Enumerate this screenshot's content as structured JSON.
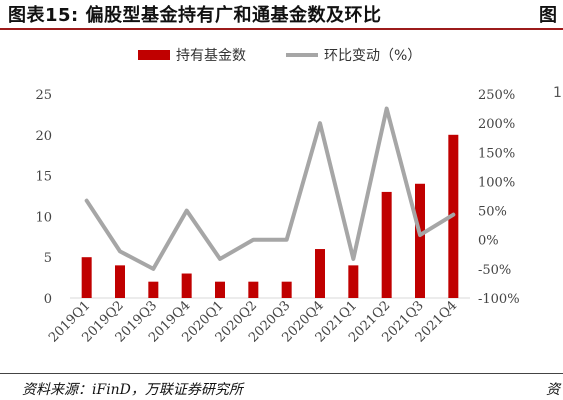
{
  "header": {
    "title": "图表15:  偏股型基金持有广和通基金数及环比",
    "title_right_fragment": "图"
  },
  "footer": {
    "source": "资料来源：iFinD，万联证券研究所",
    "source_right_fragment": "资"
  },
  "clipped_right_tick": "1",
  "chart_data": {
    "type": "bar+line",
    "categories": [
      "2019Q1",
      "2019Q2",
      "2019Q3",
      "2019Q4",
      "2020Q1",
      "2020Q2",
      "2020Q3",
      "2020Q4",
      "2021Q1",
      "2021Q2",
      "2021Q3",
      "2021Q4"
    ],
    "series": [
      {
        "name": "持有基金数",
        "type": "bar",
        "axis": "left",
        "color": "#c00000",
        "values": [
          5,
          4,
          2,
          3,
          2,
          2,
          2,
          6,
          4,
          13,
          14,
          20
        ]
      },
      {
        "name": "环比变动（%）",
        "type": "line",
        "axis": "right",
        "color": "#a6a6a6",
        "values": [
          67,
          -20,
          -50,
          50,
          -33,
          0,
          0,
          200,
          -33,
          225,
          8,
          43
        ]
      }
    ],
    "left_axis": {
      "min": 0,
      "max": 25,
      "ticks": [
        "0",
        "5",
        "10",
        "15",
        "20",
        "25"
      ]
    },
    "right_axis": {
      "min": -100,
      "max": 250,
      "ticks": [
        "-100%",
        "-50%",
        "0%",
        "50%",
        "100%",
        "150%",
        "200%",
        "250%"
      ]
    },
    "legend_position": "top-center",
    "grid": false
  }
}
